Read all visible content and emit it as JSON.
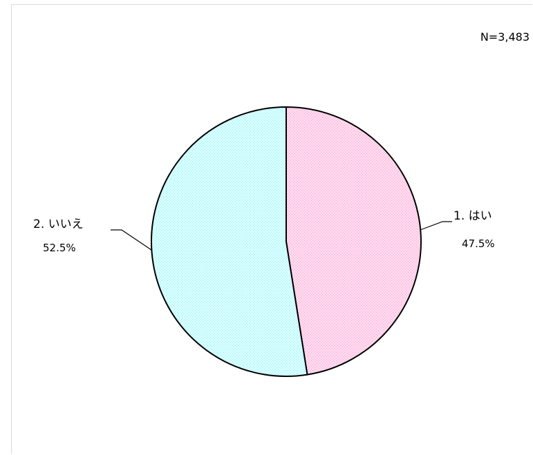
{
  "chart_data": {
    "type": "pie",
    "title": "",
    "sample_size_label": "N=3,483",
    "slices": [
      {
        "label": "1. はい",
        "percent_label": "47.5%",
        "value": 47.5,
        "color": "#ffc8e6"
      },
      {
        "label": "2. いいえ",
        "percent_label": "52.5%",
        "value": 52.5,
        "color": "#ccffff"
      }
    ],
    "start_angle": "12 o'clock",
    "direction": "clockwise",
    "legend": "none",
    "outline_color": "#000000"
  }
}
